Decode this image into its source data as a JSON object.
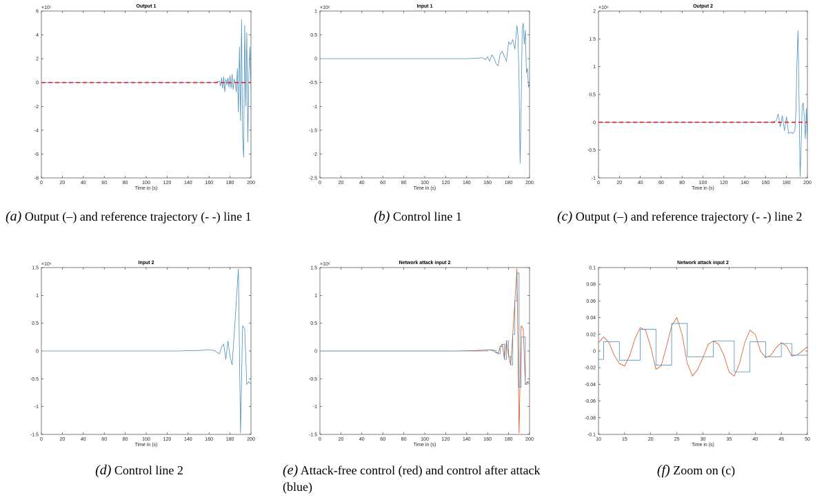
{
  "chart_data": [
    {
      "id": "a",
      "type": "line",
      "title": "Output 1",
      "xlabel": "Time in (s)",
      "ylabel": "",
      "exponent": "×10⁵",
      "xlim": [
        0,
        200
      ],
      "ylim": [
        -8,
        6
      ],
      "xticks": [
        0,
        20,
        40,
        60,
        80,
        100,
        120,
        140,
        160,
        180,
        200
      ],
      "yticks": [
        -8,
        -6,
        -4,
        -2,
        0,
        2,
        4,
        6
      ],
      "grid": false,
      "series": [
        {
          "color": "#4a90c0",
          "style": "solid",
          "x": [
            0,
            165,
            170,
            171,
            172,
            173,
            174,
            175,
            176,
            177,
            178,
            179,
            180,
            181,
            182,
            183,
            184,
            185,
            186,
            187,
            188,
            189,
            190,
            191,
            192,
            193,
            194,
            195,
            196,
            197,
            198,
            199,
            200
          ],
          "y": [
            0,
            0,
            0.1,
            -0.3,
            0.4,
            -0.5,
            0.5,
            -0.8,
            0.3,
            -0.2,
            0.4,
            -0.4,
            0.6,
            -0.5,
            0.7,
            -0.6,
            0.3,
            0,
            -0.8,
            1.2,
            -2.5,
            3,
            -3.2,
            5.3,
            -4.5,
            -6.3,
            4.8,
            -2,
            4.2,
            -5,
            0.8,
            3,
            -1
          ]
        },
        {
          "color": "#e02020",
          "style": "dashed",
          "x": [
            0,
            200
          ],
          "y": [
            0,
            0
          ]
        }
      ]
    },
    {
      "id": "b",
      "type": "line",
      "title": "Input 1",
      "xlabel": "Time in (s)",
      "ylabel": "",
      "exponent": "×10⁶",
      "xlim": [
        0,
        200
      ],
      "ylim": [
        -2.5,
        1
      ],
      "xticks": [
        0,
        20,
        40,
        60,
        80,
        100,
        120,
        140,
        160,
        180,
        200
      ],
      "yticks": [
        -2.5,
        -2,
        -1.5,
        -1,
        -0.5,
        0,
        0.5,
        1
      ],
      "grid": false,
      "series": [
        {
          "color": "#4a90c0",
          "style": "solid",
          "x": [
            0,
            140,
            150,
            155,
            158,
            160,
            162,
            164,
            166,
            168,
            170,
            172,
            174,
            176,
            178,
            180,
            182,
            184,
            186,
            188,
            189,
            190,
            191,
            192,
            193,
            194,
            195,
            196,
            197,
            198,
            199,
            200
          ],
          "y": [
            0,
            0,
            0.01,
            0.02,
            -0.02,
            0.04,
            -0.05,
            0.08,
            0.02,
            -0.1,
            -0.15,
            0.1,
            0.15,
            0.05,
            -0.05,
            0.35,
            0.3,
            0.4,
            0.2,
            0.7,
            0.5,
            -0.5,
            -2.2,
            -1,
            0.6,
            0.75,
            0.3,
            0.6,
            -0.3,
            -0.2,
            -0.6,
            -0.5
          ]
        }
      ]
    },
    {
      "id": "c",
      "type": "line",
      "title": "Output 2",
      "xlabel": "Time in (s)",
      "ylabel": "",
      "exponent": "×10⁶",
      "xlim": [
        0,
        200
      ],
      "ylim": [
        -1,
        2
      ],
      "xticks": [
        0,
        20,
        40,
        60,
        80,
        100,
        120,
        140,
        160,
        180,
        200
      ],
      "yticks": [
        -1,
        -0.5,
        0,
        0.5,
        1,
        1.5,
        2
      ],
      "grid": false,
      "series": [
        {
          "color": "#4a90c0",
          "style": "solid",
          "x": [
            0,
            165,
            170,
            172,
            174,
            176,
            178,
            180,
            182,
            184,
            186,
            188,
            189,
            190,
            191,
            192,
            193,
            194,
            195,
            196,
            197,
            198,
            199,
            200
          ],
          "y": [
            0,
            0,
            0.02,
            0.15,
            -0.08,
            0.12,
            -0.15,
            0.1,
            -0.2,
            -0.18,
            -0.2,
            -0.15,
            0.2,
            1.1,
            1.65,
            0.4,
            -0.98,
            -0.4,
            0.3,
            0.35,
            0.1,
            -0.3,
            0.25,
            -0.4
          ]
        },
        {
          "color": "#e02020",
          "style": "dashed",
          "x": [
            0,
            200
          ],
          "y": [
            0,
            0
          ]
        }
      ]
    },
    {
      "id": "d",
      "type": "line",
      "title": "Input 2",
      "xlabel": "Time in (s)",
      "ylabel": "",
      "exponent": "×10⁶",
      "xlim": [
        0,
        200
      ],
      "ylim": [
        -1.5,
        1.5
      ],
      "xticks": [
        0,
        20,
        40,
        60,
        80,
        100,
        120,
        140,
        160,
        180,
        200
      ],
      "yticks": [
        -1.5,
        -1,
        -0.5,
        0,
        0.5,
        1,
        1.5
      ],
      "grid": false,
      "series": [
        {
          "color": "#4a90c0",
          "style": "solid",
          "x": [
            0,
            130,
            150,
            160,
            165,
            168,
            170,
            172,
            174,
            176,
            178,
            180,
            182,
            184,
            186,
            188,
            190,
            192,
            194,
            196,
            198,
            200
          ],
          "y": [
            0,
            0,
            0.01,
            0.02,
            0.01,
            -0.03,
            -0.05,
            0.08,
            0.12,
            -0.15,
            0.18,
            -0.1,
            -0.25,
            0.3,
            0.9,
            1.48,
            -1.48,
            0.45,
            0.4,
            -0.6,
            -0.55,
            -0.6
          ]
        }
      ]
    },
    {
      "id": "e",
      "type": "line",
      "title": "Network attack input 2",
      "xlabel": "Time in (s)",
      "ylabel": "",
      "exponent": "×10⁶",
      "xlim": [
        0,
        200
      ],
      "ylim": [
        -1.5,
        1.5
      ],
      "xticks": [
        0,
        20,
        40,
        60,
        80,
        100,
        120,
        140,
        160,
        180,
        200
      ],
      "yticks": [
        -1.5,
        -1,
        -0.5,
        0,
        0.5,
        1,
        1.5
      ],
      "grid": false,
      "series": [
        {
          "color": "#d9541d",
          "style": "solid",
          "x": [
            0,
            130,
            150,
            160,
            165,
            168,
            170,
            172,
            174,
            176,
            178,
            180,
            182,
            184,
            186,
            188,
            190,
            192,
            194,
            196,
            198,
            200
          ],
          "y": [
            0,
            0,
            0.01,
            0.02,
            0.01,
            -0.03,
            -0.05,
            0.08,
            0.12,
            -0.15,
            0.18,
            -0.1,
            -0.25,
            0.3,
            0.9,
            1.48,
            -1.48,
            0.45,
            0.4,
            -0.6,
            -0.55,
            -0.6
          ]
        },
        {
          "color": "#4a90c0",
          "style": "step",
          "x": [
            0,
            130,
            150,
            160,
            165,
            168,
            170,
            172,
            174,
            176,
            178,
            180,
            182,
            184,
            186,
            188,
            190,
            192,
            194,
            196,
            198,
            200
          ],
          "y": [
            0,
            0,
            0,
            0.02,
            0.01,
            -0.03,
            -0.05,
            0.08,
            0.12,
            -0.15,
            0.18,
            -0.1,
            -0.25,
            0.3,
            0.9,
            1.4,
            -0.65,
            0.25,
            0.25,
            -0.6,
            -0.55,
            -0.6
          ]
        }
      ]
    },
    {
      "id": "f",
      "type": "line",
      "title": "Network attack input 2",
      "xlabel": "Time in (s)",
      "ylabel": "",
      "exponent": "",
      "xlim": [
        10,
        50
      ],
      "ylim": [
        -0.1,
        0.1
      ],
      "xticks": [
        10,
        15,
        20,
        25,
        30,
        35,
        40,
        45,
        50
      ],
      "yticks": [
        -0.1,
        -0.08,
        -0.06,
        -0.04,
        -0.02,
        0,
        0.02,
        0.04,
        0.06,
        0.08,
        0.1
      ],
      "grid": false,
      "series": [
        {
          "color": "#d9541d",
          "style": "solid",
          "x": [
            10,
            11,
            12,
            13,
            14,
            15,
            16,
            17,
            18,
            19,
            20,
            21,
            22,
            23,
            24,
            25,
            26,
            27,
            28,
            29,
            30,
            31,
            32,
            33,
            34,
            35,
            36,
            37,
            38,
            39,
            40,
            41,
            42,
            43,
            44,
            45,
            46,
            47,
            48,
            49,
            50
          ],
          "y": [
            0.01,
            0.017,
            0.01,
            -0.005,
            -0.015,
            -0.018,
            -0.005,
            0.015,
            0.028,
            0.025,
            0.005,
            -0.022,
            -0.018,
            0.005,
            0.03,
            0.04,
            0.02,
            -0.015,
            -0.03,
            -0.022,
            -0.008,
            0.008,
            0.012,
            0.008,
            -0.005,
            -0.025,
            -0.03,
            -0.015,
            0.01,
            0.025,
            0.02,
            0.0,
            -0.008,
            -0.005,
            0.004,
            0.01,
            0.006,
            -0.006,
            -0.005,
            0.0,
            0.005
          ]
        },
        {
          "color": "#4a90c0",
          "style": "step",
          "x": [
            10,
            11,
            14,
            18,
            21,
            24,
            27,
            32,
            36,
            39,
            42,
            45,
            47,
            50
          ],
          "y": [
            -0.01,
            0.011,
            -0.011,
            0.026,
            -0.017,
            0.033,
            -0.007,
            0.012,
            -0.025,
            0.011,
            -0.007,
            0.009,
            -0.005,
            -0.005
          ]
        }
      ]
    }
  ],
  "captions": [
    {
      "label": "(a)",
      "text": "Output (–) and reference trajectory (- -) line 1"
    },
    {
      "label": "(b)",
      "text": "Control line 1"
    },
    {
      "label": "(c)",
      "text": "Output (–) and reference trajectory (- -) line 2"
    },
    {
      "label": "(d)",
      "text": "Control line 2"
    },
    {
      "label": "(e)",
      "text": "Attack-free control (red) and control after attack (blue)"
    },
    {
      "label": "(f)",
      "text": "Zoom on (c)"
    }
  ]
}
